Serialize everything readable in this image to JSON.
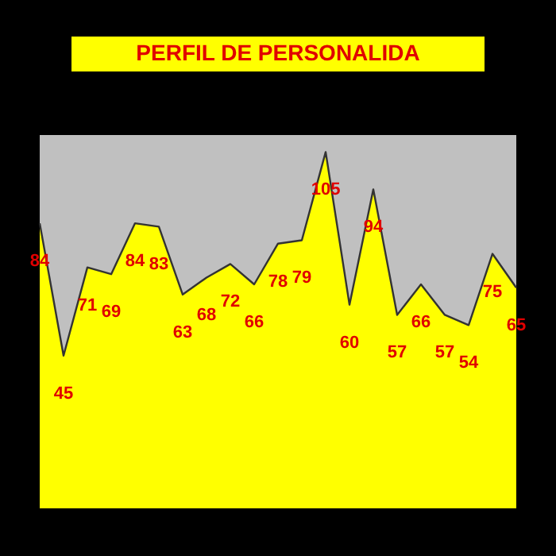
{
  "chart_data": {
    "type": "area",
    "title": "PERFIL DE PERSONALIDA",
    "categories": [
      null,
      null,
      null,
      null,
      null,
      null,
      null,
      null,
      null,
      null,
      null,
      null,
      null,
      null,
      null,
      null,
      null,
      null,
      null,
      null,
      null
    ],
    "values": [
      84,
      45,
      71,
      69,
      84,
      83,
      63,
      68,
      72,
      66,
      78,
      79,
      105,
      60,
      94,
      57,
      66,
      57,
      54,
      75,
      65
    ],
    "color": "#ffff00",
    "data_labels": true,
    "tick_labels": false
  }
}
